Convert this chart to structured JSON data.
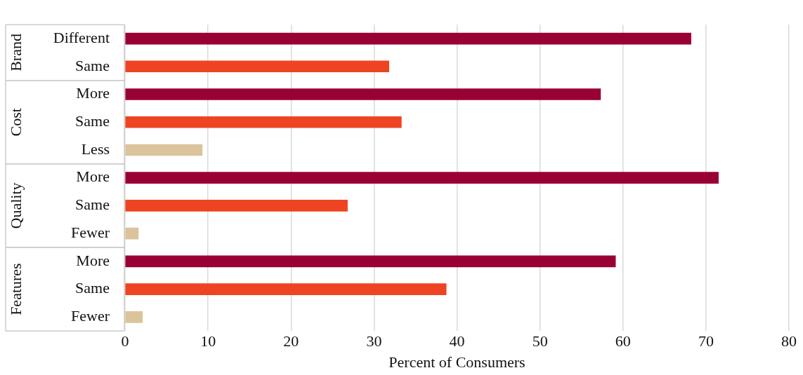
{
  "chart_data": {
    "type": "bar",
    "orientation": "horizontal",
    "xlabel": "Percent of Consumers",
    "categories": [
      "Different",
      "Same",
      "More",
      "Same",
      "Less",
      "More",
      "Same",
      "Fewer",
      "More",
      "Same",
      "Fewer"
    ],
    "values": [
      68.2,
      31.8,
      57.3,
      33.3,
      9.3,
      71.5,
      26.8,
      1.6,
      59.1,
      38.7,
      2.1
    ],
    "colors": [
      "#990033",
      "#ee4422",
      "#990033",
      "#ee4422",
      "#dbc39b",
      "#990033",
      "#ee4422",
      "#dbc39b",
      "#990033",
      "#ee4422",
      "#dbc39b"
    ],
    "annotations": [
      "Brand",
      "Cost",
      "Quality",
      "Features"
    ],
    "xlim": [
      0,
      80
    ],
    "xticks": [
      0,
      10,
      20,
      30,
      40,
      50,
      60,
      70,
      80
    ],
    "grid": "x",
    "legend": false
  }
}
